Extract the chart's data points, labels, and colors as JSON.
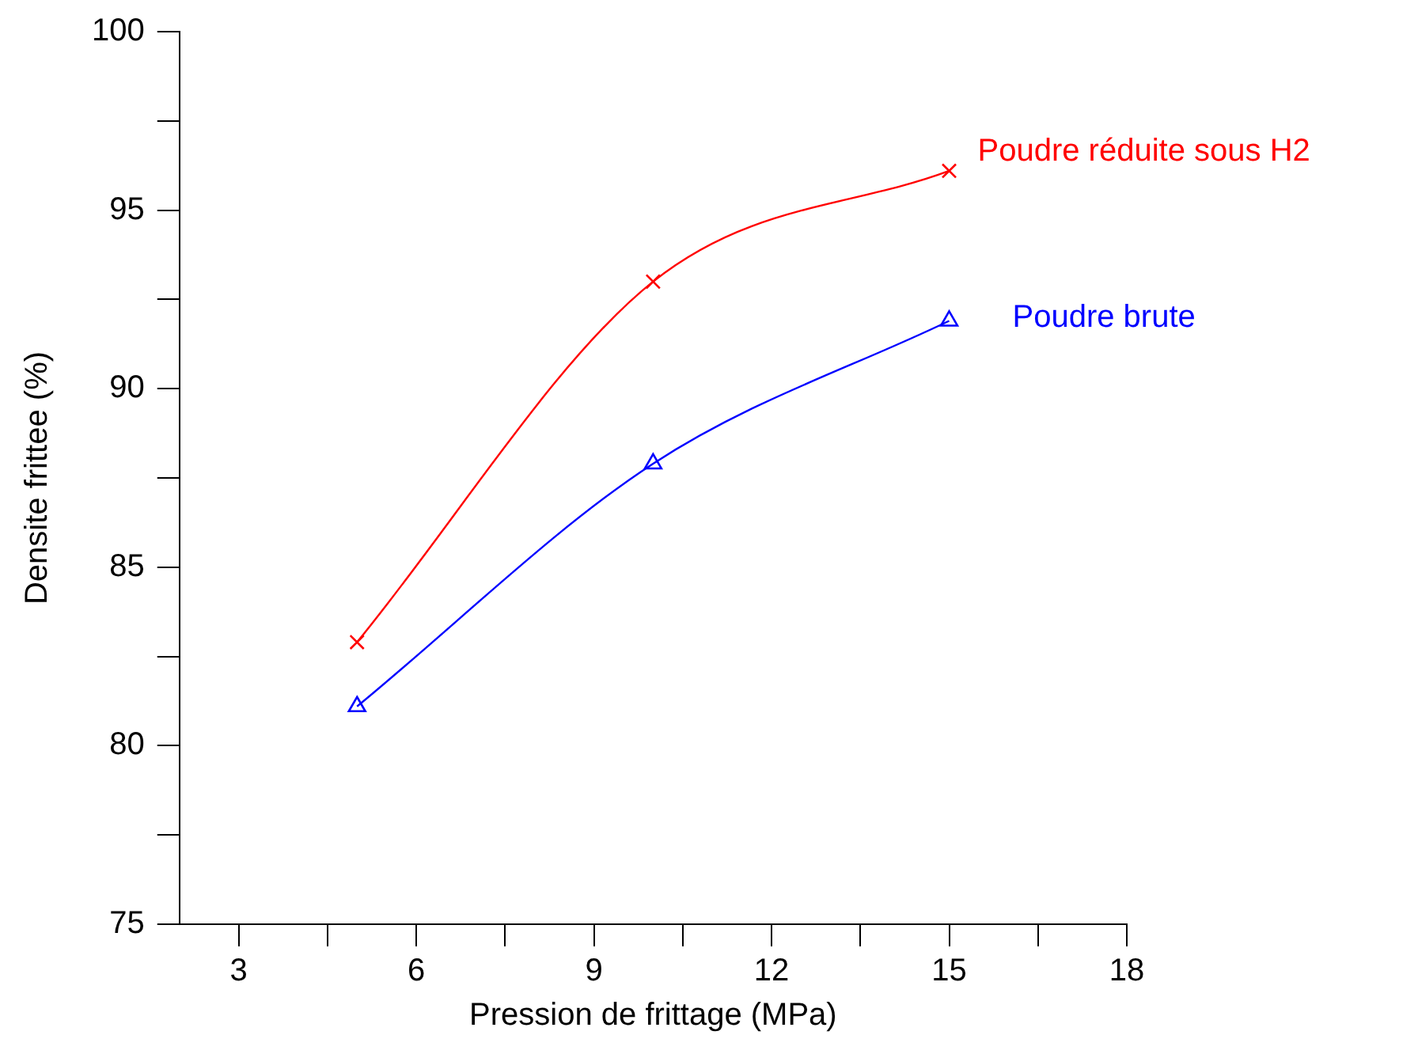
{
  "chart_data": {
    "type": "line",
    "xlabel": "Pression de frittage (MPa)",
    "ylabel": "Densite frittee (%)",
    "x": [
      5,
      10,
      15
    ],
    "series": [
      {
        "name": "Poudre réduite sous H2",
        "color": "#ff0000",
        "marker": "cross",
        "values": [
          82.9,
          93.0,
          96.1
        ]
      },
      {
        "name": "Poudre brute",
        "color": "#0000ff",
        "marker": "triangle",
        "values": [
          81.1,
          87.9,
          91.9
        ]
      }
    ],
    "xlim": [
      2,
      18
    ],
    "xticks": [
      3,
      {
        "value": 4.5,
        "label": null
      },
      6,
      {
        "value": 7.5,
        "label": null
      },
      9,
      {
        "value": 10.5,
        "label": null
      },
      12,
      {
        "value": 13.5,
        "label": null
      },
      15,
      {
        "value": 16.5,
        "label": null
      },
      18
    ],
    "ylim": [
      75,
      100
    ],
    "yticks": [
      75,
      {
        "value": 77.5,
        "label": null
      },
      80,
      {
        "value": 82.5,
        "label": null
      },
      85,
      {
        "value": 87.5,
        "label": null
      },
      90,
      {
        "value": 92.5,
        "label": null
      },
      95,
      {
        "value": 97.5,
        "label": null
      },
      100
    ],
    "grid": false,
    "legend": false,
    "line_style": "solid"
  }
}
